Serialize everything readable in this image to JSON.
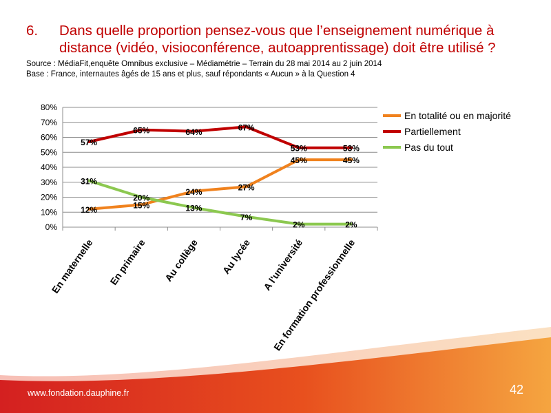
{
  "title": {
    "number": "6.",
    "text": "Dans quelle proportion pensez-vous que l’enseignement numérique à distance (vidéo, visioconférence, autoapprentissage) doit être utilisé ?"
  },
  "source_line": "Source : MédiaFit,enquête Omnibus exclusive – Médiamétrie – Terrain du 28 mai 2014 au 2 juin 2014",
  "base_line": "Base : France, internautes âgés de 15 ans et plus, sauf répondants « Aucun » à la Question 4",
  "footer": {
    "url": "www.fondation.dauphine.fr",
    "page": "42"
  },
  "chart_data": {
    "type": "line",
    "categories": [
      "En maternelle",
      "En primaire",
      "Au collège",
      "Au lycée",
      "A l'université",
      "En formation professionnelle"
    ],
    "series": [
      {
        "name": "En totalité ou en majorité",
        "color": "#f0821e",
        "values": [
          12,
          15,
          24,
          27,
          45,
          45
        ],
        "labels": [
          "12%",
          "15%",
          "24%",
          "27%",
          "45%",
          "45%"
        ]
      },
      {
        "name": "Partiellement",
        "color": "#c00000",
        "values": [
          57,
          65,
          64,
          67,
          53,
          53
        ],
        "labels": [
          "57%",
          "65%",
          "64%",
          "67%",
          "53%",
          "53%"
        ]
      },
      {
        "name": "Pas du tout",
        "color": "#8cc850",
        "values": [
          31,
          20,
          13,
          7,
          2,
          2
        ],
        "labels": [
          "31%",
          "20%",
          "13%",
          "7%",
          "2%",
          "2%"
        ]
      }
    ],
    "yticks": [
      "0%",
      "10%",
      "20%",
      "30%",
      "40%",
      "50%",
      "60%",
      "70%",
      "80%"
    ],
    "ylim": [
      0,
      80
    ],
    "grid": true,
    "legend": "right"
  }
}
